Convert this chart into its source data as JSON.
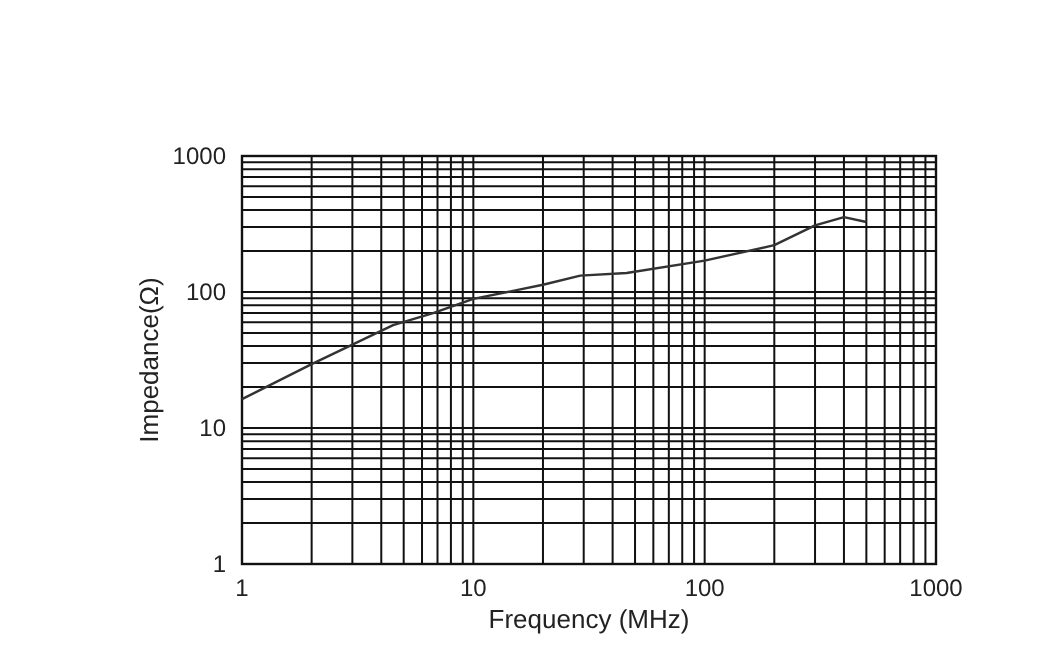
{
  "chart_data": {
    "type": "line",
    "xlabel": "Frequency (MHz)",
    "ylabel": "Impedance(Ω)",
    "log": "xy",
    "grid": true,
    "marker": "none",
    "line_style": "solid",
    "xlim": [
      1,
      1000
    ],
    "xticks": [
      1,
      10,
      100,
      1000
    ],
    "ylim": [
      1,
      1000
    ],
    "yticks": [
      1,
      10,
      100,
      1000
    ],
    "x": [
      1,
      2,
      3,
      4.5,
      6.7,
      10,
      20,
      29,
      46,
      100,
      200,
      300,
      400,
      500
    ],
    "series": [
      {
        "color": "#333333",
        "values": [
          16.3,
          29.5,
          41,
          57,
          70,
          89,
          113,
          132,
          138,
          170,
          221,
          309,
          355,
          327
        ]
      }
    ]
  }
}
